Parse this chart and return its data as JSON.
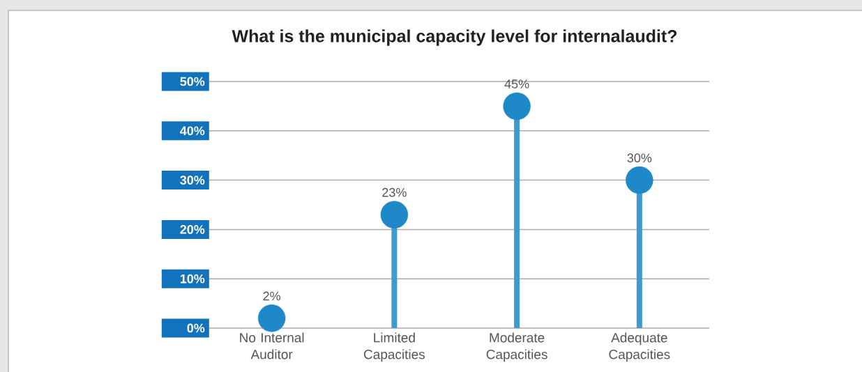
{
  "chart_data": {
    "type": "lollipop",
    "title": "What is the municipal capacity level for internalaudit?",
    "categories": [
      "No Internal Auditor",
      "Limited Capacities",
      "Moderate Capacities",
      "Adequate Capacities"
    ],
    "values": [
      2,
      23,
      45,
      30
    ],
    "value_labels": [
      "2%",
      "23%",
      "45%",
      "30%"
    ],
    "color": "#1e88c8",
    "marker": "circle",
    "ylim": [
      0,
      50
    ],
    "yticks": [
      {
        "value": 0,
        "label": "0%"
      },
      {
        "value": 10,
        "label": "10%"
      },
      {
        "value": 20,
        "label": "20%"
      },
      {
        "value": 30,
        "label": "30%"
      },
      {
        "value": 40,
        "label": "40%"
      },
      {
        "value": 50,
        "label": "50%"
      }
    ],
    "grid": "y"
  }
}
